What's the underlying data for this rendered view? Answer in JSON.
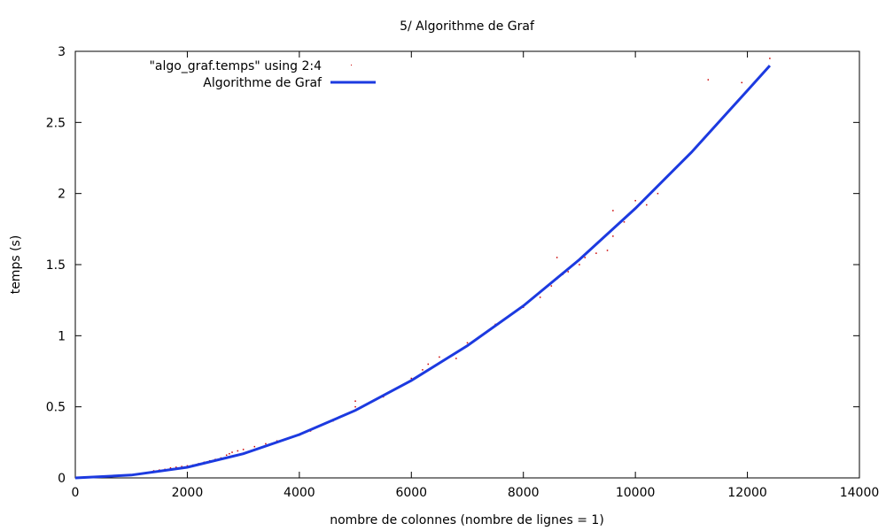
{
  "chart_data": {
    "type": "scatter",
    "title": "5/ Algorithme de Graf",
    "xlabel": "nombre de colonnes (nombre de lignes = 1)",
    "ylabel": "temps (s)",
    "xlim": [
      0,
      14000
    ],
    "ylim": [
      0,
      3
    ],
    "xticks": [
      0,
      2000,
      4000,
      6000,
      8000,
      10000,
      12000,
      14000
    ],
    "yticks": [
      0,
      0.5,
      1,
      1.5,
      2,
      2.5,
      3
    ],
    "xtick_labels": [
      "0",
      "2000",
      "4000",
      "6000",
      "8000",
      "10000",
      "12000",
      "14000"
    ],
    "ytick_labels": [
      "0",
      "0.5",
      "1",
      "1.5",
      "2",
      "2.5",
      "3"
    ],
    "grid": false,
    "legend_position": "top-left",
    "series": [
      {
        "name": "\"algo_graf.temps\" using 2:4",
        "kind": "points",
        "color": "#cc0000",
        "points": [
          [
            1400,
            0.05
          ],
          [
            1500,
            0.055
          ],
          [
            1600,
            0.06
          ],
          [
            1700,
            0.07
          ],
          [
            1800,
            0.075
          ],
          [
            1900,
            0.08
          ],
          [
            2000,
            0.085
          ],
          [
            2100,
            0.09
          ],
          [
            2200,
            0.1
          ],
          [
            2300,
            0.11
          ],
          [
            2400,
            0.12
          ],
          [
            2500,
            0.13
          ],
          [
            2600,
            0.14
          ],
          [
            2700,
            0.16
          ],
          [
            2750,
            0.17
          ],
          [
            2800,
            0.18
          ],
          [
            2900,
            0.19
          ],
          [
            3000,
            0.2
          ],
          [
            3200,
            0.22
          ],
          [
            3400,
            0.24
          ],
          [
            3600,
            0.26
          ],
          [
            3800,
            0.28
          ],
          [
            4000,
            0.3
          ],
          [
            4200,
            0.33
          ],
          [
            4400,
            0.37
          ],
          [
            4600,
            0.4
          ],
          [
            4800,
            0.44
          ],
          [
            5000,
            0.5
          ],
          [
            5000,
            0.54
          ],
          [
            5200,
            0.52
          ],
          [
            5500,
            0.57
          ],
          [
            5800,
            0.64
          ],
          [
            6000,
            0.7
          ],
          [
            6200,
            0.76
          ],
          [
            6300,
            0.8
          ],
          [
            6500,
            0.85
          ],
          [
            6800,
            0.84
          ],
          [
            7000,
            0.95
          ],
          [
            7500,
            1.08
          ],
          [
            8000,
            1.2
          ],
          [
            8300,
            1.27
          ],
          [
            8500,
            1.35
          ],
          [
            8600,
            1.4
          ],
          [
            8600,
            1.55
          ],
          [
            8700,
            1.43
          ],
          [
            8800,
            1.45
          ],
          [
            9000,
            1.5
          ],
          [
            9100,
            1.55
          ],
          [
            9300,
            1.58
          ],
          [
            9500,
            1.6
          ],
          [
            9600,
            1.7
          ],
          [
            9600,
            1.88
          ],
          [
            9800,
            1.8
          ],
          [
            10000,
            1.95
          ],
          [
            10200,
            1.92
          ],
          [
            10400,
            2.0
          ],
          [
            11300,
            2.8
          ],
          [
            11900,
            2.78
          ],
          [
            12400,
            2.95
          ]
        ]
      },
      {
        "name": "Algorithme de Graf",
        "kind": "line",
        "color": "#1c3ae0",
        "x": [
          0,
          1000,
          2000,
          3000,
          4000,
          5000,
          6000,
          7000,
          8000,
          9000,
          10000,
          11000,
          12000,
          12400
        ],
        "y": [
          0,
          0.02,
          0.075,
          0.17,
          0.305,
          0.475,
          0.685,
          0.93,
          1.21,
          1.535,
          1.895,
          2.29,
          2.725,
          2.9
        ]
      }
    ]
  }
}
